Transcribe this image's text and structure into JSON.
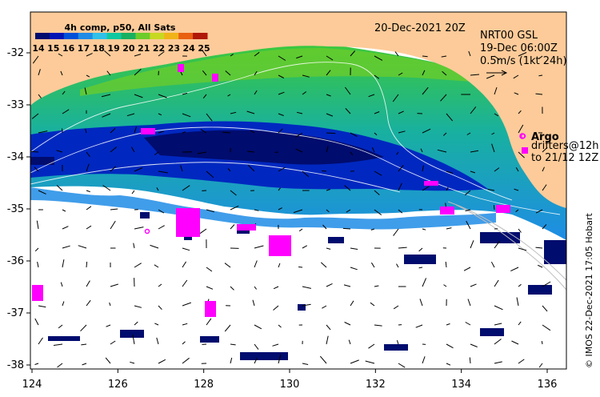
{
  "map": {
    "colorbar": {
      "title": "4h comp, p50, All Sats",
      "labels": [
        "14",
        "15",
        "16",
        "17",
        "18",
        "19",
        "20",
        "21",
        "22",
        "23",
        "24",
        "25"
      ],
      "colors": [
        "#000c6e",
        "#0014b4",
        "#0050d8",
        "#1e8ce6",
        "#30c0e8",
        "#10c8a0",
        "#18b060",
        "#6ccc2a",
        "#c8d820",
        "#f0b418",
        "#e86010",
        "#b01808"
      ]
    },
    "date_label": "20-Dec-2021 20Z",
    "current_label": {
      "line1": "NRT00 GSL",
      "line2": "19-Dec 06:00Z",
      "line3": "0.5m/s (1kt 24h)"
    },
    "legend": {
      "argo_label": "Argo",
      "drifters_line1": "drifters@12h",
      "drifters_line2": "to 21/12 12Z"
    },
    "credit": "© IMOS 22-Dec-2021 17:05 Hobart",
    "x_ticks": [
      "124",
      "126",
      "128",
      "130",
      "132",
      "134",
      "136"
    ],
    "y_ticks": [
      "-32",
      "-33",
      "-34",
      "-35",
      "-36",
      "-37",
      "-38"
    ],
    "colors": {
      "land": "#fdcb99",
      "ocean_nodata": "#ffffff",
      "argo": "#ff00ff"
    }
  }
}
